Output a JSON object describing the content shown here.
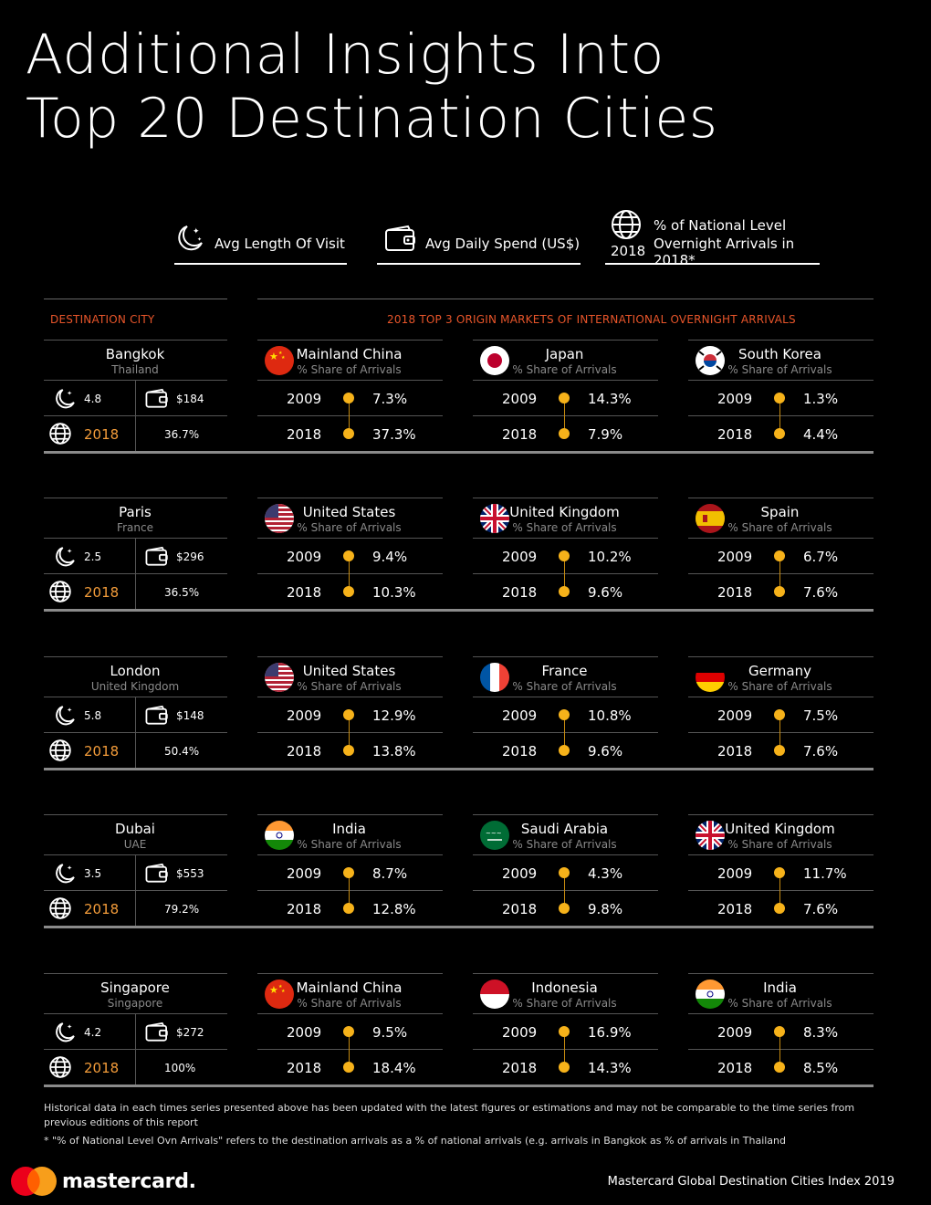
{
  "title_line1": "Additional Insights Into",
  "title_line2": "Top 20 Destination Cities",
  "legend": {
    "avg_length": "Avg Length Of Visit",
    "avg_spend": "Avg Daily Spend (US$)",
    "national_line1": "% of National Level",
    "national_line2": "Overnight Arrivals in 2018*",
    "national_year": "2018"
  },
  "headers": {
    "destination_city": "DESTINATION CITY",
    "origin_markets": "2018 TOP 3 ORIGIN MARKETS OF INTERNATIONAL OVERNIGHT ARRIVALS"
  },
  "share_label": "% Share of Arrivals",
  "year_a": "2009",
  "year_b": "2018",
  "cities": [
    {
      "name": "Bangkok",
      "country": "Thailand",
      "length": "4.8",
      "spend": "$184",
      "year": "2018",
      "national": "36.7%",
      "markets": [
        {
          "name": "Mainland China",
          "flag": "china-flag-icon",
          "v2009": "7.3%",
          "v2018": "37.3%"
        },
        {
          "name": "Japan",
          "flag": "japan-flag-icon",
          "v2009": "14.3%",
          "v2018": "7.9%"
        },
        {
          "name": "South Korea",
          "flag": "south-korea-flag-icon",
          "v2009": "1.3%",
          "v2018": "4.4%"
        }
      ]
    },
    {
      "name": "Paris",
      "country": "France",
      "length": "2.5",
      "spend": "$296",
      "year": "2018",
      "national": "36.5%",
      "markets": [
        {
          "name": "United States",
          "flag": "usa-flag-icon",
          "v2009": "9.4%",
          "v2018": "10.3%"
        },
        {
          "name": "United Kingdom",
          "flag": "uk-flag-icon",
          "v2009": "10.2%",
          "v2018": "9.6%"
        },
        {
          "name": "Spain",
          "flag": "spain-flag-icon",
          "v2009": "6.7%",
          "v2018": "7.6%"
        }
      ]
    },
    {
      "name": "London",
      "country": "United Kingdom",
      "length": "5.8",
      "spend": "$148",
      "year": "2018",
      "national": "50.4%",
      "markets": [
        {
          "name": "United States",
          "flag": "usa-flag-icon",
          "v2009": "12.9%",
          "v2018": "13.8%"
        },
        {
          "name": "France",
          "flag": "france-flag-icon",
          "v2009": "10.8%",
          "v2018": "9.6%"
        },
        {
          "name": "Germany",
          "flag": "germany-flag-icon",
          "v2009": "7.5%",
          "v2018": "7.6%"
        }
      ]
    },
    {
      "name": "Dubai",
      "country": "UAE",
      "length": "3.5",
      "spend": "$553",
      "year": "2018",
      "national": "79.2%",
      "markets": [
        {
          "name": "India",
          "flag": "india-flag-icon",
          "v2009": "8.7%",
          "v2018": "12.8%"
        },
        {
          "name": "Saudi Arabia",
          "flag": "saudi-arabia-flag-icon",
          "v2009": "4.3%",
          "v2018": "9.8%"
        },
        {
          "name": "United Kingdom",
          "flag": "uk-flag-icon",
          "v2009": "11.7%",
          "v2018": "7.6%"
        }
      ]
    },
    {
      "name": "Singapore",
      "country": "Singapore",
      "length": "4.2",
      "spend": "$272",
      "year": "2018",
      "national": "100%",
      "markets": [
        {
          "name": "Mainland China",
          "flag": "china-flag-icon",
          "v2009": "9.5%",
          "v2018": "18.4%"
        },
        {
          "name": "Indonesia",
          "flag": "indonesia-flag-icon",
          "v2009": "16.9%",
          "v2018": "14.3%"
        },
        {
          "name": "India",
          "flag": "india-flag-icon",
          "v2009": "8.3%",
          "v2018": "8.5%"
        }
      ]
    }
  ],
  "footnote1": "Historical data in each times series presented above has been updated  with the latest figures or estimations and may not be comparable to the time series from previous editions of this report",
  "footnote2": "* \"% of National Level Ovn Arrivals\" refers to the destination arrivals as a % of national arrivals  (e.g. arrivals  in Bangkok as % of arrivals in Thailand",
  "brand": "mastercard.",
  "source": "Mastercard Global Destination Cities Index 2019",
  "colors": {
    "accent_orange": "#f39c3a",
    "dot_yellow": "#f6b21a",
    "header_red": "#e8552a"
  }
}
